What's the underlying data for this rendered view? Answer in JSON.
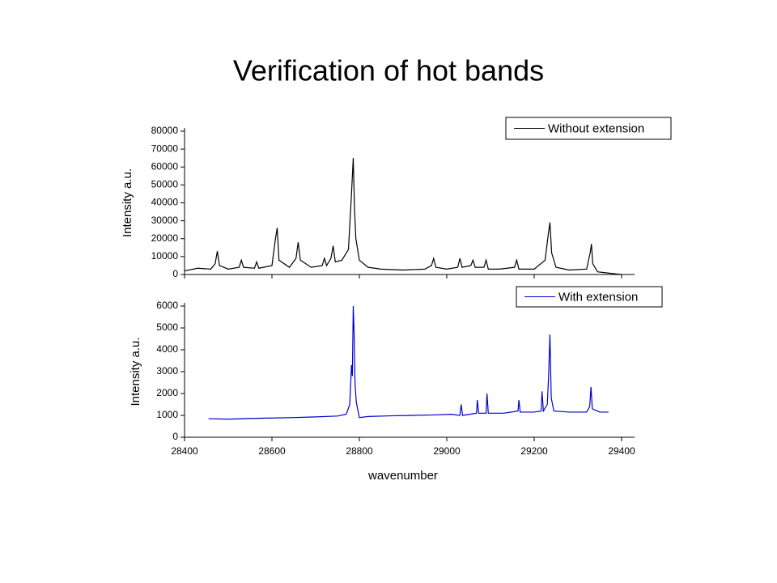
{
  "title": "Verification of hot bands",
  "chart_data": [
    {
      "type": "line",
      "ylabel": "Intensity a.u.",
      "x": [
        28400,
        28430,
        28460,
        28470,
        28475,
        28480,
        28500,
        28525,
        28530,
        28535,
        28560,
        28565,
        28570,
        28600,
        28608,
        28612,
        28616,
        28640,
        28655,
        28660,
        28665,
        28690,
        28715,
        28720,
        28725,
        28735,
        28740,
        28745,
        28760,
        28775,
        28782,
        28786,
        28789,
        28792,
        28800,
        28820,
        28850,
        28900,
        28950,
        28965,
        28970,
        28975,
        29000,
        29025,
        29030,
        29035,
        29055,
        29060,
        29065,
        29085,
        29090,
        29095,
        29120,
        29155,
        29160,
        29165,
        29200,
        29225,
        29232,
        29236,
        29240,
        29250,
        29280,
        29320,
        29328,
        29331,
        29334,
        29345,
        29370,
        29400
      ],
      "series": [
        {
          "name": "Without extension",
          "color": "#000000",
          "values": [
            2000,
            3500,
            3000,
            6000,
            13000,
            5000,
            3000,
            4000,
            8000,
            4000,
            3500,
            7000,
            3500,
            5000,
            20000,
            26000,
            8000,
            4000,
            9000,
            18000,
            8000,
            4000,
            5000,
            9000,
            5000,
            9000,
            16000,
            7000,
            8000,
            14000,
            45000,
            65000,
            36000,
            20000,
            8000,
            4000,
            3000,
            2500,
            3000,
            5000,
            9000,
            4000,
            3000,
            4000,
            9000,
            4000,
            5000,
            8000,
            4000,
            4000,
            8000,
            3000,
            3000,
            4000,
            8000,
            3000,
            3000,
            8000,
            22000,
            29000,
            12000,
            4000,
            2500,
            3000,
            12000,
            17000,
            6000,
            1500,
            800,
            0
          ]
        }
      ],
      "xlim": [
        28400,
        29400
      ],
      "ylim": [
        0,
        80000
      ],
      "yticks": [
        0,
        10000,
        20000,
        30000,
        40000,
        50000,
        60000,
        70000,
        80000
      ]
    },
    {
      "type": "line",
      "ylabel": "Intensity a.u.",
      "xlabel": "wavenumber",
      "x": [
        28455,
        28500,
        28550,
        28600,
        28650,
        28700,
        28750,
        28770,
        28778,
        28782,
        28784,
        28786,
        28788,
        28790,
        28793,
        28800,
        28820,
        28870,
        28920,
        28970,
        29010,
        29030,
        29033,
        29036,
        29068,
        29070,
        29073,
        29090,
        29092,
        29095,
        29130,
        29163,
        29165,
        29168,
        29200,
        29216,
        29218,
        29221,
        29230,
        29233,
        29236,
        29239,
        29245,
        29280,
        29320,
        29327,
        29330,
        29333,
        29350,
        29370
      ],
      "series": [
        {
          "name": "With extension",
          "color": "#0000cc",
          "values": [
            850,
            830,
            860,
            880,
            900,
            930,
            970,
            1050,
            1500,
            3300,
            2800,
            6000,
            4800,
            2500,
            1600,
            900,
            950,
            980,
            1000,
            1020,
            1050,
            1000,
            1500,
            1000,
            1100,
            1700,
            1100,
            1100,
            2000,
            1100,
            1100,
            1200,
            1700,
            1150,
            1150,
            1200,
            2100,
            1200,
            1500,
            2800,
            4700,
            1800,
            1200,
            1150,
            1150,
            1400,
            2300,
            1300,
            1150,
            1150
          ]
        }
      ],
      "xlim": [
        28400,
        29400
      ],
      "ylim": [
        0,
        6000
      ],
      "xticks": [
        28400,
        28600,
        28800,
        29000,
        29200,
        29400
      ],
      "yticks": [
        0,
        1000,
        2000,
        3000,
        4000,
        5000,
        6000
      ]
    }
  ]
}
